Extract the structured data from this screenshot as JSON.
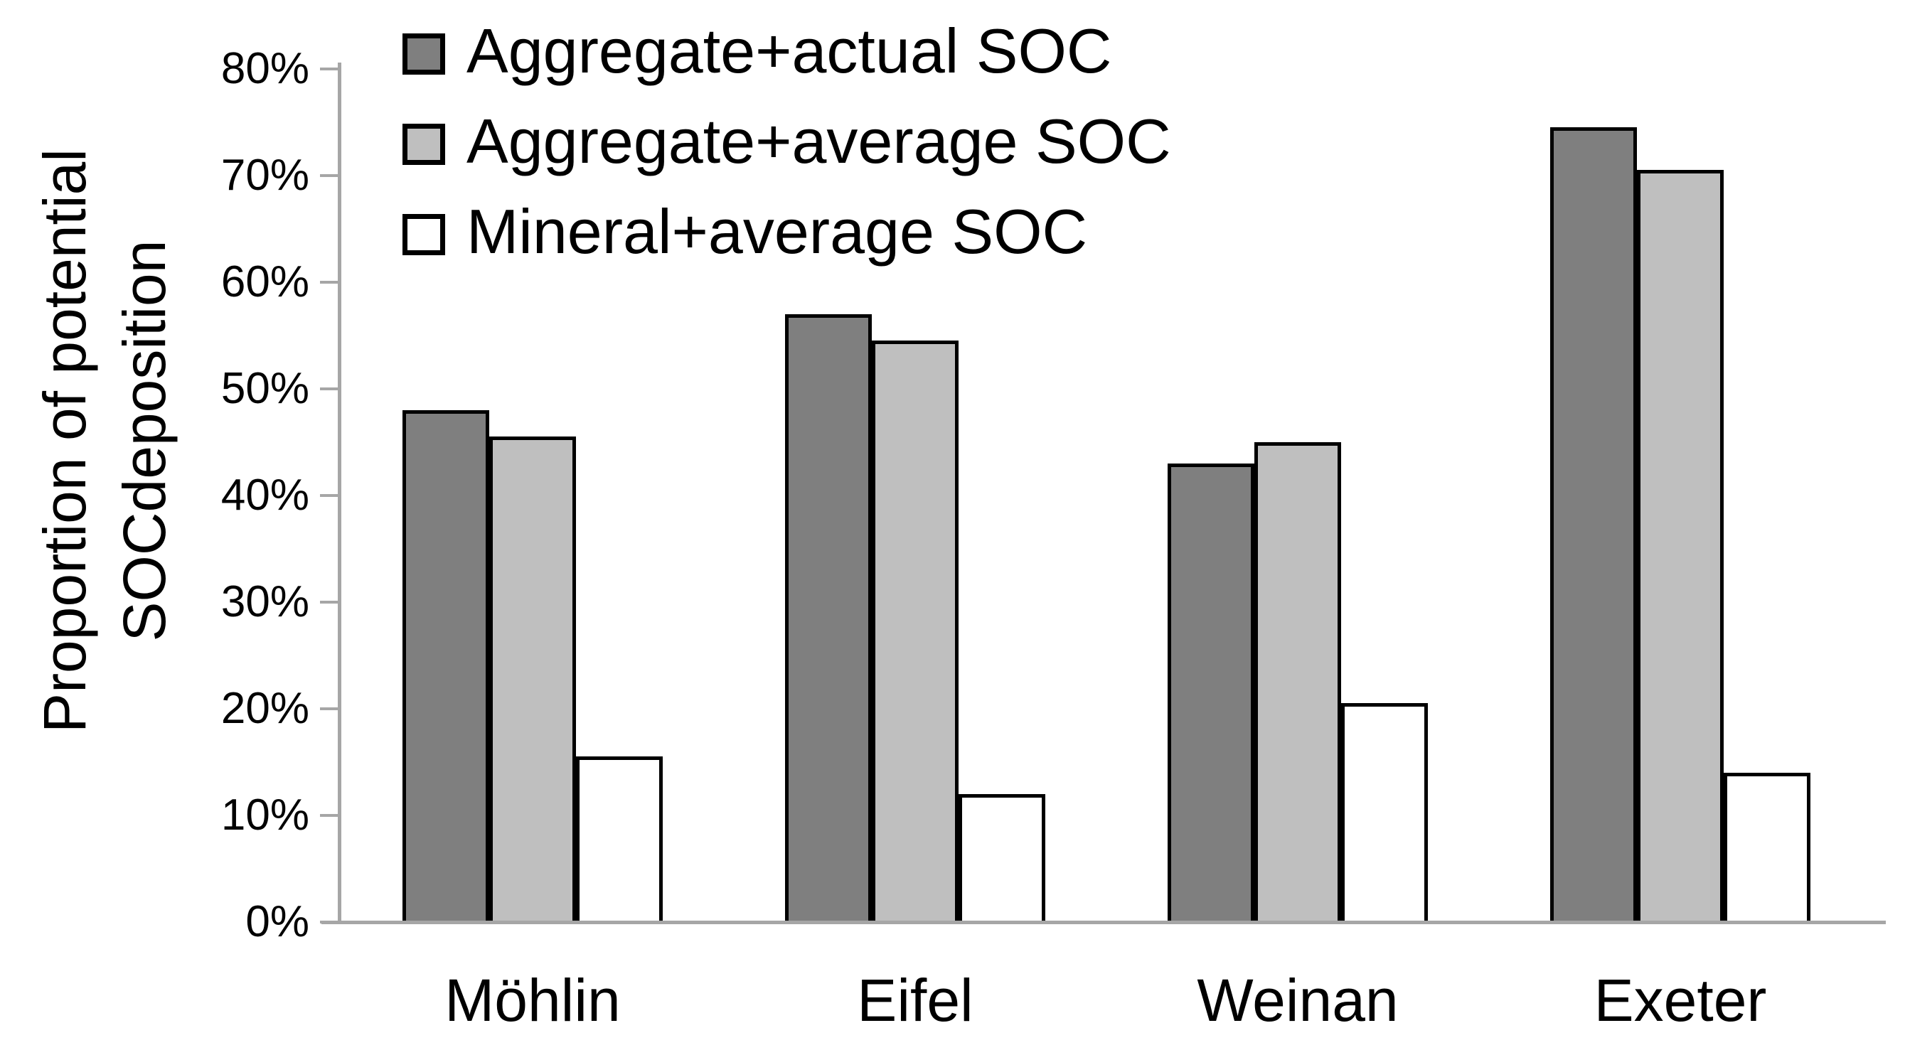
{
  "chart_data": {
    "type": "bar",
    "categories": [
      "Möhlin",
      "Eifel",
      "Weinan",
      "Exeter"
    ],
    "series": [
      {
        "name": "Aggregate+actual SOC",
        "color": "#7f7f7f",
        "values": [
          48,
          57,
          43,
          74.5
        ]
      },
      {
        "name": "Aggregate+average SOC",
        "color": "#bfbfbf",
        "values": [
          45.5,
          54.5,
          45,
          70.5
        ]
      },
      {
        "name": "Mineral+average SOC",
        "color": "#ffffff",
        "values": [
          15.5,
          12,
          20.5,
          14
        ]
      }
    ],
    "title": "",
    "xlabel": "",
    "ylabel_lines": [
      "Proportion of potential",
      "SOCdeposition"
    ],
    "ylim": [
      0,
      80
    ],
    "ytick_step": 10,
    "yticks": [
      "0%",
      "10%",
      "20%",
      "30%",
      "40%",
      "50%",
      "60%",
      "70%",
      "80%"
    ],
    "grid": "off",
    "legend_position": "top-left-inside",
    "colors": {
      "bar_outline": "#000000",
      "axis": "#a6a6a6",
      "text": "#000000",
      "background": "#ffffff"
    }
  }
}
